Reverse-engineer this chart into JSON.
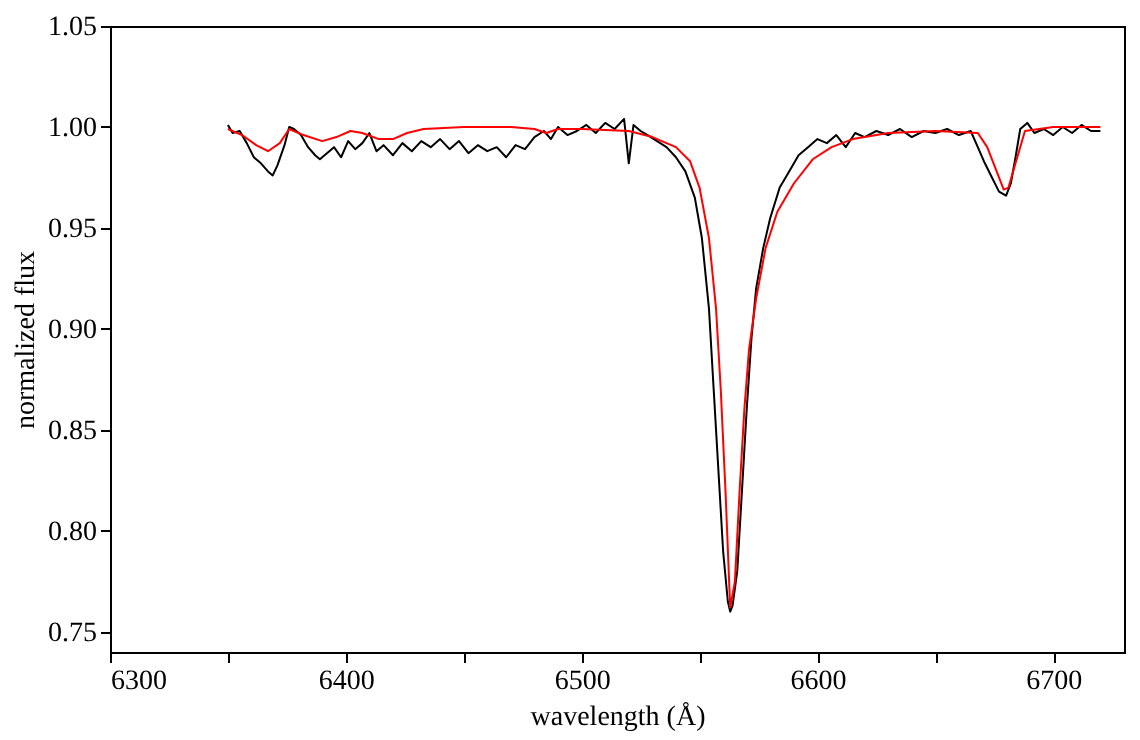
{
  "chart_data": {
    "type": "line",
    "xlabel": "wavelength (Å)",
    "ylabel": "normalized flux",
    "xlim": [
      6300,
      6730
    ],
    "ylim": [
      0.74,
      1.05
    ],
    "xticks": [
      6300,
      {
        "value": 6350,
        "label": null
      },
      6400,
      {
        "value": 6450,
        "label": null
      },
      6500,
      {
        "value": 6550,
        "label": null
      },
      6600,
      {
        "value": 6650,
        "label": null
      },
      6700
    ],
    "yticks": [
      {
        "value": 0.75,
        "label": "0.75"
      },
      {
        "value": 0.8,
        "label": "0.80"
      },
      {
        "value": 0.85,
        "label": "0.85"
      },
      {
        "value": 0.9,
        "label": "0.90"
      },
      {
        "value": 0.95,
        "label": "0.95"
      },
      {
        "value": 1.0,
        "label": "1.00"
      },
      {
        "value": 1.05,
        "label": "1.05"
      }
    ],
    "grid": false,
    "line_style": "solid",
    "marker": "none",
    "series": [
      {
        "color": "#000000",
        "x": [
          6350,
          6352,
          6355,
          6358,
          6361,
          6364,
          6367,
          6369,
          6371,
          6374,
          6376,
          6378,
          6381,
          6384,
          6387,
          6389,
          6392,
          6395,
          6398,
          6401,
          6404,
          6407,
          6410,
          6413,
          6416,
          6420,
          6424,
          6428,
          6432,
          6436,
          6440,
          6444,
          6448,
          6452,
          6456,
          6460,
          6464,
          6468,
          6472,
          6476,
          6480,
          6484,
          6487,
          6490,
          6494,
          6498,
          6502,
          6506,
          6510,
          6514,
          6518,
          6520,
          6522,
          6525,
          6528,
          6532,
          6536,
          6540,
          6544,
          6548,
          6551,
          6554,
          6556,
          6558,
          6560,
          6562,
          6563,
          6564,
          6566,
          6568,
          6570,
          6572,
          6574,
          6577,
          6580,
          6584,
          6588,
          6592,
          6596,
          6600,
          6604,
          6608,
          6612,
          6616,
          6620,
          6625,
          6630,
          6635,
          6640,
          6645,
          6650,
          6655,
          6660,
          6665,
          6668,
          6671,
          6674,
          6677,
          6680,
          6682,
          6684,
          6686,
          6689,
          6692,
          6696,
          6700,
          6704,
          6708,
          6712,
          6716,
          6720
        ],
        "values": [
          1.001,
          0.997,
          0.998,
          0.992,
          0.985,
          0.982,
          0.978,
          0.976,
          0.981,
          0.991,
          1.0,
          0.999,
          0.996,
          0.99,
          0.986,
          0.984,
          0.987,
          0.99,
          0.985,
          0.993,
          0.989,
          0.992,
          0.997,
          0.988,
          0.991,
          0.986,
          0.992,
          0.988,
          0.993,
          0.99,
          0.994,
          0.989,
          0.993,
          0.987,
          0.991,
          0.988,
          0.99,
          0.985,
          0.991,
          0.989,
          0.995,
          0.998,
          0.994,
          1.0,
          0.996,
          0.998,
          1.001,
          0.997,
          1.002,
          0.999,
          1.004,
          0.982,
          1.001,
          0.998,
          0.996,
          0.993,
          0.99,
          0.985,
          0.978,
          0.965,
          0.945,
          0.91,
          0.87,
          0.83,
          0.79,
          0.765,
          0.76,
          0.763,
          0.78,
          0.82,
          0.86,
          0.895,
          0.92,
          0.94,
          0.955,
          0.97,
          0.978,
          0.986,
          0.99,
          0.994,
          0.992,
          0.996,
          0.99,
          0.997,
          0.995,
          0.998,
          0.996,
          0.999,
          0.995,
          0.998,
          0.997,
          0.999,
          0.996,
          0.998,
          0.99,
          0.982,
          0.975,
          0.968,
          0.966,
          0.972,
          0.985,
          0.999,
          1.002,
          0.997,
          0.999,
          0.996,
          1.0,
          0.997,
          1.001,
          0.998,
          0.998
        ]
      },
      {
        "color": "#ff0000",
        "x": [
          6350,
          6356,
          6362,
          6367,
          6372,
          6376,
          6382,
          6390,
          6396,
          6402,
          6407,
          6414,
          6420,
          6426,
          6433,
          6450,
          6470,
          6480,
          6485,
          6490,
          6500,
          6520,
          6530,
          6540,
          6546,
          6550,
          6554,
          6557,
          6559,
          6561,
          6563,
          6565,
          6567,
          6569,
          6571,
          6574,
          6578,
          6583,
          6590,
          6598,
          6606,
          6615,
          6630,
          6650,
          6668,
          6672,
          6676,
          6679,
          6681,
          6684,
          6688,
          6700,
          6720
        ],
        "values": [
          0.999,
          0.996,
          0.991,
          0.988,
          0.992,
          0.999,
          0.996,
          0.993,
          0.995,
          0.998,
          0.997,
          0.994,
          0.994,
          0.997,
          0.999,
          1.0,
          1.0,
          0.999,
          0.997,
          0.999,
          0.999,
          0.998,
          0.995,
          0.99,
          0.983,
          0.97,
          0.945,
          0.91,
          0.87,
          0.82,
          0.762,
          0.775,
          0.82,
          0.86,
          0.89,
          0.915,
          0.94,
          0.958,
          0.972,
          0.984,
          0.99,
          0.994,
          0.997,
          0.998,
          0.997,
          0.99,
          0.978,
          0.969,
          0.97,
          0.982,
          0.998,
          1.0,
          1.0
        ]
      }
    ]
  }
}
